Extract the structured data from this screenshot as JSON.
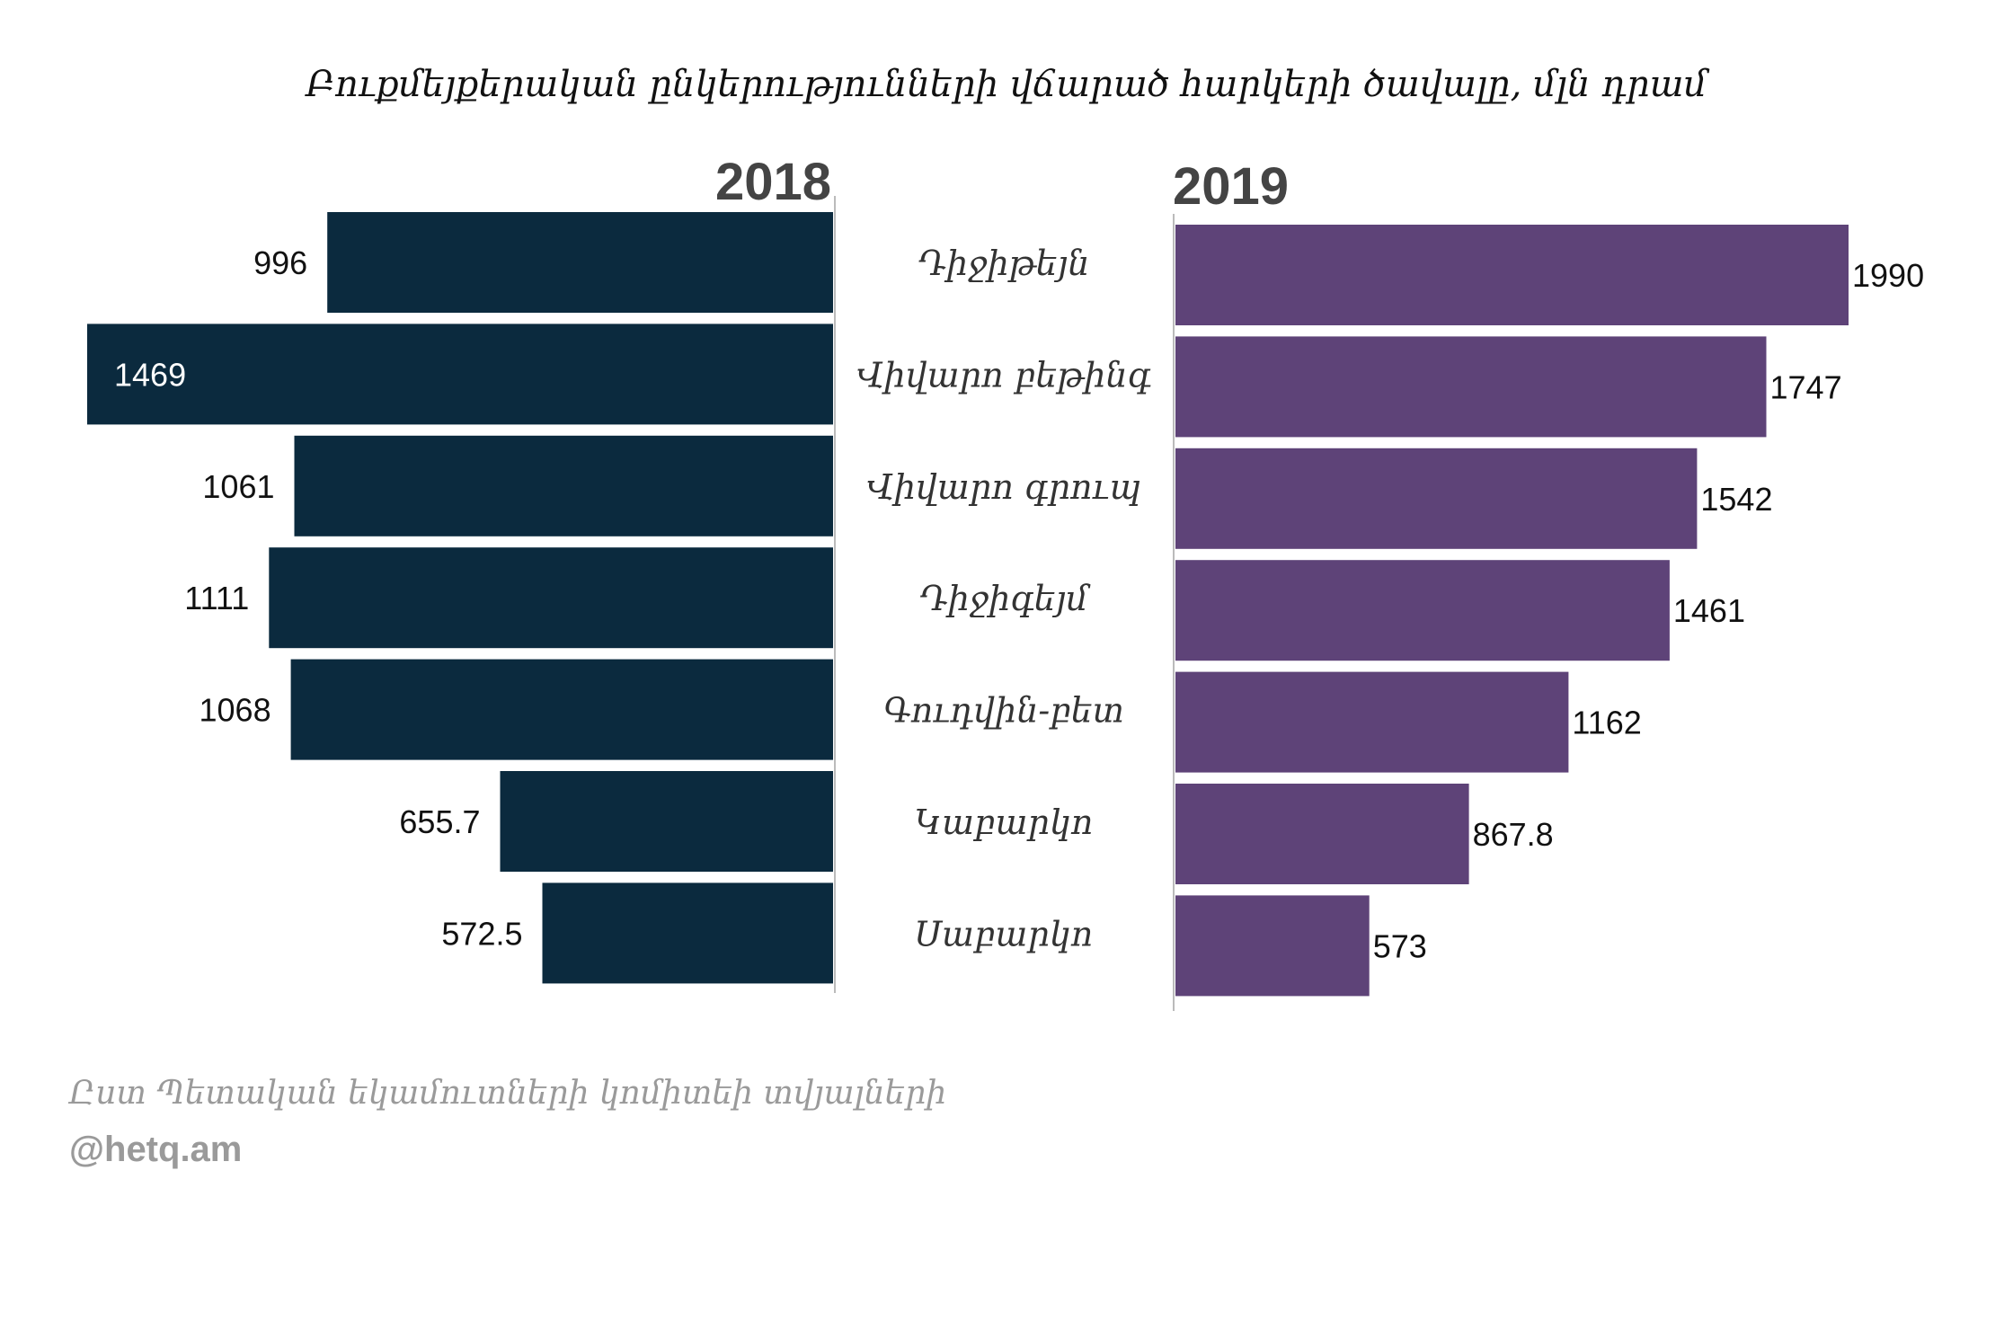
{
  "chart_data": {
    "type": "bar",
    "title": "Բուքմեյքերական ընկերությունների վճարած հարկերի ծավալը, մլն դրամ",
    "categories": [
      "Դիջիթեյն",
      "Վիվարո բեթինգ",
      "Վիվարո գրուպ",
      "Դիջիգեյմ",
      "Գուդվին-բետ",
      "Կաբարկո",
      "Սաբարկո"
    ],
    "series": [
      {
        "name": "2018",
        "values": [
          996,
          1469,
          1061,
          1111,
          1068,
          655.7,
          572.5
        ],
        "color": "#0b2a3e"
      },
      {
        "name": "2019",
        "values": [
          1990,
          1747,
          1542,
          1461,
          1162,
          867.8,
          573
        ],
        "color": "#5e4378"
      }
    ],
    "source": "Ըստ Պետական եկամուտների կոմիտեի տվյալների",
    "credit": "@hetq.am"
  }
}
